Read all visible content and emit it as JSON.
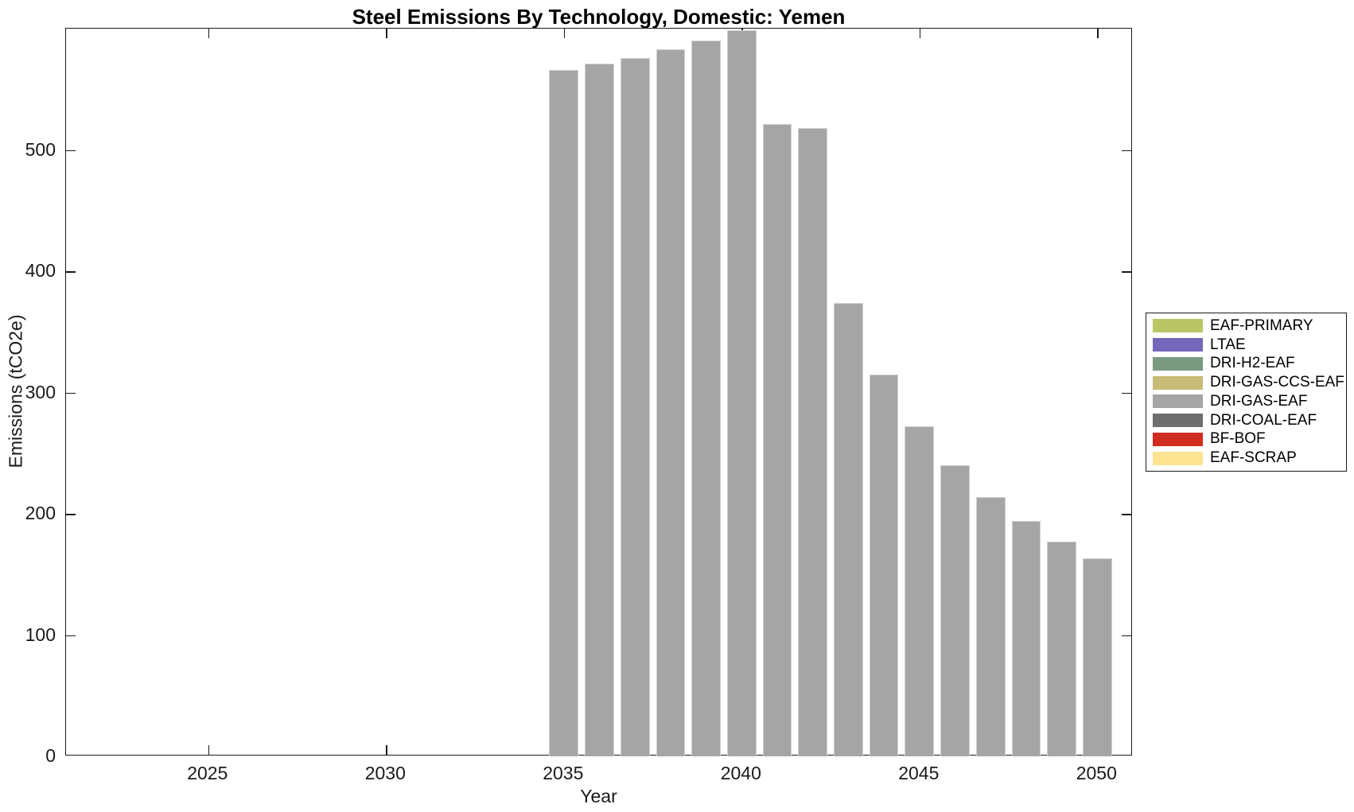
{
  "chart_data": {
    "type": "bar",
    "title": "Steel Emissions By Technology, Domestic: Yemen",
    "xlabel": "Year",
    "ylabel": "Emissions (tCO2e)",
    "xlim": [
      2021,
      2051
    ],
    "ylim": [
      0,
      600
    ],
    "x_ticks": [
      2025,
      2030,
      2035,
      2040,
      2045,
      2050
    ],
    "y_ticks": [
      0,
      100,
      200,
      300,
      400,
      500
    ],
    "grid": false,
    "background_color": "#ffffff",
    "axis_color": "#1a1a1a",
    "bar_width_fraction": 0.82,
    "series": [
      {
        "name": "DRI-GAS-EAF",
        "color": "#a5a5a5",
        "x": [
          2035,
          2036,
          2037,
          2038,
          2039,
          2040,
          2041,
          2042,
          2043,
          2044,
          2045,
          2046,
          2047,
          2048,
          2049,
          2050
        ],
        "values": [
          566,
          571,
          576,
          583,
          590,
          599,
          521,
          518,
          374,
          315,
          272,
          240,
          214,
          194,
          177,
          163
        ]
      }
    ],
    "legend": {
      "position": "right-outside",
      "entries": [
        {
          "label": "EAF-PRIMARY",
          "color": "#b9c566"
        },
        {
          "label": "LTAE",
          "color": "#7468bb"
        },
        {
          "label": "DRI-H2-EAF",
          "color": "#7a9a80"
        },
        {
          "label": "DRI-GAS-CCS-EAF",
          "color": "#c7bb78"
        },
        {
          "label": "DRI-GAS-EAF",
          "color": "#a5a5a5"
        },
        {
          "label": "DRI-COAL-EAF",
          "color": "#6e6e6e"
        },
        {
          "label": "BF-BOF",
          "color": "#d02c22"
        },
        {
          "label": "EAF-SCRAP",
          "color": "#fde392"
        }
      ]
    }
  }
}
